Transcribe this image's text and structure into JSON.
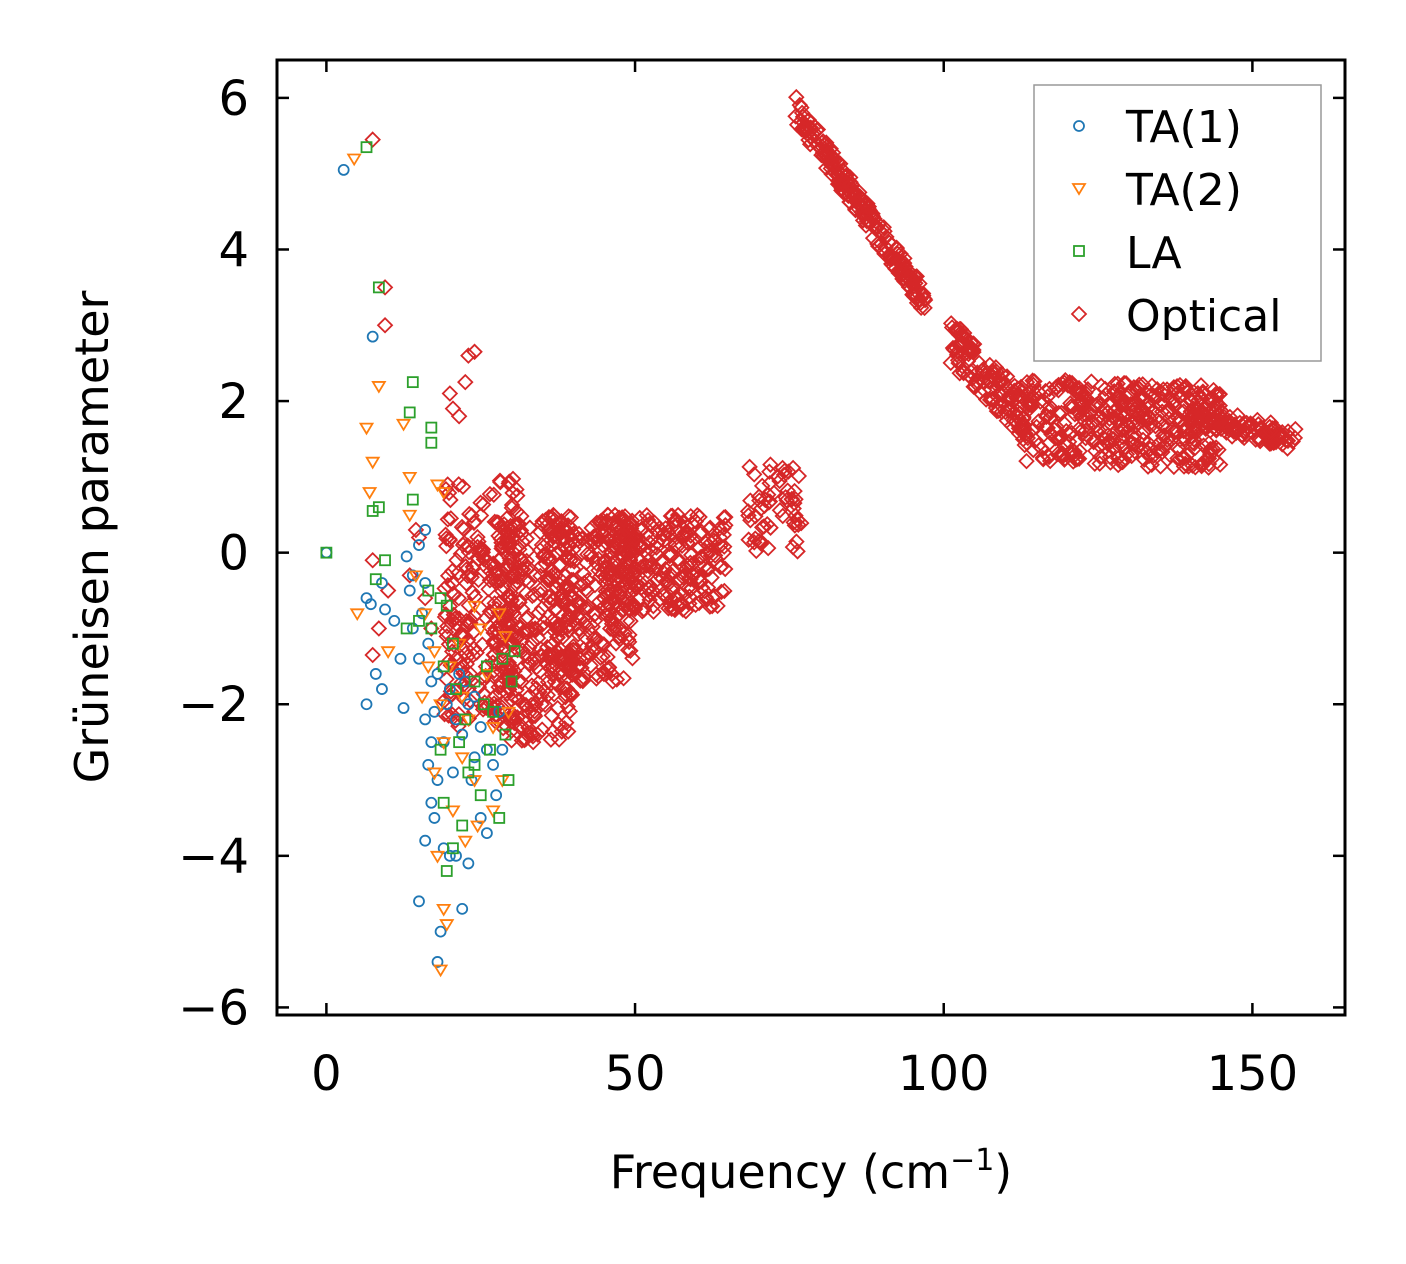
{
  "chart_data": {
    "type": "scatter",
    "title": "",
    "xlabel": "Frequency (cm",
    "xlabel_sup": "−1",
    "xlabel_end": ")",
    "ylabel": "Grüneisen parameter",
    "xlim": [
      -8,
      165
    ],
    "ylim": [
      -6.1,
      6.5
    ],
    "xticks": [
      0,
      50,
      100,
      150
    ],
    "xtick_labels": [
      "0",
      "50",
      "100",
      "150"
    ],
    "yticks": [
      6,
      4,
      2,
      0,
      -2,
      -4,
      -6
    ],
    "ytick_labels": [
      "6",
      "4",
      "2",
      "0",
      "−2",
      "−4",
      "−6"
    ],
    "legend_position": "top-right",
    "series": [
      {
        "name": "TA(1)",
        "label": "TA(1)",
        "marker": "circle",
        "color": "#1f77b4",
        "points": [
          [
            0,
            0
          ],
          [
            2.8,
            5.05
          ],
          [
            7.5,
            2.85
          ],
          [
            6.5,
            -0.6
          ],
          [
            7.2,
            -0.68
          ],
          [
            9.0,
            -0.4
          ],
          [
            9.5,
            -0.75
          ],
          [
            8.0,
            -1.6
          ],
          [
            9.0,
            -1.8
          ],
          [
            6.5,
            -2.0
          ],
          [
            12.5,
            -2.05
          ],
          [
            13,
            -0.05
          ],
          [
            13.5,
            -0.5
          ],
          [
            14,
            -1.0
          ],
          [
            15,
            -1.4
          ],
          [
            15.5,
            -0.8
          ],
          [
            16,
            -0.4
          ],
          [
            16.5,
            -1.2
          ],
          [
            17,
            -1.7
          ],
          [
            17.5,
            -2.1
          ],
          [
            18,
            -1.6
          ],
          [
            16,
            -2.2
          ],
          [
            17,
            -2.5
          ],
          [
            16.5,
            -2.8
          ],
          [
            18,
            -3.0
          ],
          [
            17,
            -3.3
          ],
          [
            16,
            -3.8
          ],
          [
            17.5,
            -3.5
          ],
          [
            19,
            -2.5
          ],
          [
            19.5,
            -2.0
          ],
          [
            20,
            -1.8
          ],
          [
            21,
            -2.2
          ],
          [
            20.5,
            -2.9
          ],
          [
            22,
            -2.4
          ],
          [
            23,
            -2.0
          ],
          [
            24,
            -1.9
          ],
          [
            25,
            -2.3
          ],
          [
            23.5,
            -3.0
          ],
          [
            26,
            -2.6
          ],
          [
            27,
            -2.8
          ],
          [
            28,
            -2.1
          ],
          [
            27.5,
            -3.2
          ],
          [
            25,
            -3.5
          ],
          [
            21,
            -4.0
          ],
          [
            23,
            -4.1
          ],
          [
            15,
            -4.6
          ],
          [
            22,
            -4.7
          ],
          [
            18.5,
            -5.0
          ],
          [
            18,
            -5.4
          ],
          [
            14,
            -0.3
          ],
          [
            15,
            0.1
          ],
          [
            16,
            0.3
          ],
          [
            12,
            -1.4
          ],
          [
            11,
            -0.9
          ],
          [
            19,
            -3.9
          ],
          [
            20,
            -4.0
          ],
          [
            26,
            -3.7
          ],
          [
            24,
            -2.7
          ],
          [
            28.5,
            -2.6
          ],
          [
            22.5,
            -1.7
          ],
          [
            21.5,
            -1.6
          ]
        ]
      },
      {
        "name": "TA(2)",
        "label": "TA(2)",
        "marker": "triangle-down",
        "color": "#ff7f0e",
        "points": [
          [
            4.5,
            5.2
          ],
          [
            5,
            -0.8
          ],
          [
            6.5,
            1.65
          ],
          [
            7,
            0.8
          ],
          [
            7.5,
            1.2
          ],
          [
            8.5,
            2.2
          ],
          [
            10,
            -1.3
          ],
          [
            12.5,
            1.7
          ],
          [
            13.5,
            1.0
          ],
          [
            13.5,
            0.5
          ],
          [
            14.5,
            -0.3
          ],
          [
            16,
            -0.8
          ],
          [
            18,
            0.9
          ],
          [
            19,
            0.8
          ],
          [
            17.5,
            -1.3
          ],
          [
            18.5,
            -2.0
          ],
          [
            19,
            -2.5
          ],
          [
            20,
            -1.5
          ],
          [
            21.5,
            -1.2
          ],
          [
            22,
            -1.9
          ],
          [
            23,
            -2.2
          ],
          [
            24,
            -0.7
          ],
          [
            25,
            -1.0
          ],
          [
            26,
            -1.6
          ],
          [
            27,
            -2.3
          ],
          [
            28,
            -0.8
          ],
          [
            29,
            -1.1
          ],
          [
            29.5,
            -2.1
          ],
          [
            28.5,
            -3.0
          ],
          [
            27,
            -3.4
          ],
          [
            24.5,
            -3.6
          ],
          [
            22.5,
            -3.8
          ],
          [
            20.5,
            -3.4
          ],
          [
            19,
            -4.7
          ],
          [
            19.5,
            -4.9
          ],
          [
            18.5,
            -5.5
          ],
          [
            18,
            -4.0
          ],
          [
            17.5,
            -2.9
          ],
          [
            15.5,
            -1.9
          ],
          [
            16.5,
            -1.5
          ],
          [
            22,
            -2.7
          ],
          [
            24,
            -3.0
          ]
        ]
      },
      {
        "name": "LA",
        "label": "LA",
        "marker": "square",
        "color": "#2ca02c",
        "points": [
          [
            0,
            0
          ],
          [
            6.5,
            5.35
          ],
          [
            8.5,
            3.5
          ],
          [
            14,
            2.25
          ],
          [
            13.5,
            1.85
          ],
          [
            17,
            1.65
          ],
          [
            17,
            1.45
          ],
          [
            14,
            0.7
          ],
          [
            7.5,
            0.55
          ],
          [
            8.5,
            0.6
          ],
          [
            9.5,
            -0.1
          ],
          [
            8,
            -0.35
          ],
          [
            13,
            -1.0
          ],
          [
            16.5,
            -0.5
          ],
          [
            18.5,
            -0.6
          ],
          [
            19.5,
            -0.7
          ],
          [
            20.5,
            -1.2
          ],
          [
            21,
            -1.8
          ],
          [
            22.5,
            -2.2
          ],
          [
            24,
            -1.7
          ],
          [
            25.5,
            -2.0
          ],
          [
            27,
            -2.1
          ],
          [
            28.5,
            -1.4
          ],
          [
            30,
            -1.7
          ],
          [
            30.5,
            -1.3
          ],
          [
            29,
            -2.4
          ],
          [
            28,
            -3.5
          ],
          [
            25,
            -3.2
          ],
          [
            24,
            -2.8
          ],
          [
            22,
            -3.6
          ],
          [
            20.5,
            -3.9
          ],
          [
            19.5,
            -4.2
          ],
          [
            19,
            -3.3
          ],
          [
            18.5,
            -2.6
          ],
          [
            19,
            -1.5
          ],
          [
            17,
            -1.0
          ],
          [
            15,
            -0.9
          ],
          [
            23,
            -2.9
          ],
          [
            26.5,
            -2.6
          ],
          [
            29.5,
            -3.0
          ],
          [
            21.5,
            -2.5
          ],
          [
            26,
            -1.5
          ]
        ]
      },
      {
        "name": "Optical",
        "label": "Optical",
        "marker": "diamond",
        "color": "#d62728",
        "points": [
          [
            7.5,
            5.45
          ],
          [
            9.5,
            3.5
          ],
          [
            9.5,
            3.0
          ],
          [
            7.5,
            -0.1
          ],
          [
            7.5,
            -1.35
          ],
          [
            8.5,
            -1.0
          ],
          [
            10,
            -0.5
          ],
          [
            21.5,
            1.8
          ],
          [
            22.5,
            2.25
          ],
          [
            23,
            2.6
          ],
          [
            24,
            2.65
          ],
          [
            20,
            2.1
          ],
          [
            20.5,
            1.9
          ],
          [
            20.5,
            -0.9
          ],
          [
            21,
            -1.4
          ],
          [
            22,
            -1.1
          ],
          [
            13.5,
            -0.3
          ],
          [
            14.5,
            0.3
          ],
          [
            15,
            0.2
          ],
          [
            16,
            -0.6
          ],
          [
            17,
            -1.0
          ]
        ],
        "ranges": [
          {
            "x": [
              19,
              31
            ],
            "y": [
              -2.3,
              1.0
            ],
            "n": 240
          },
          {
            "x": [
              27,
              40
            ],
            "y": [
              -2.5,
              0.5
            ],
            "n": 300
          },
          {
            "x": [
              36,
              50
            ],
            "y": [
              -1.7,
              0.5
            ],
            "n": 280
          },
          {
            "x": [
              45,
              65
            ],
            "y": [
              -0.8,
              0.5
            ],
            "n": 260
          },
          {
            "x": [
              68,
              77
            ],
            "y": [
              0.0,
              1.2
            ],
            "n": 60
          }
        ],
        "bands": [
          {
            "x": [
              76,
              97
            ],
            "y": [
              5.85,
              3.3
            ],
            "spread": 0.18,
            "n": 220
          },
          {
            "x": [
              101,
              113
            ],
            "y": [
              2.8,
              1.8
            ],
            "spread": 0.3,
            "n": 130
          },
          {
            "x": [
              112,
              145
            ],
            "y": [
              1.75,
              1.65
            ],
            "spread": 0.55,
            "n": 420
          },
          {
            "x": [
              140,
              157
            ],
            "y": [
              1.8,
              1.5
            ],
            "spread": 0.15,
            "n": 120
          }
        ]
      }
    ]
  }
}
